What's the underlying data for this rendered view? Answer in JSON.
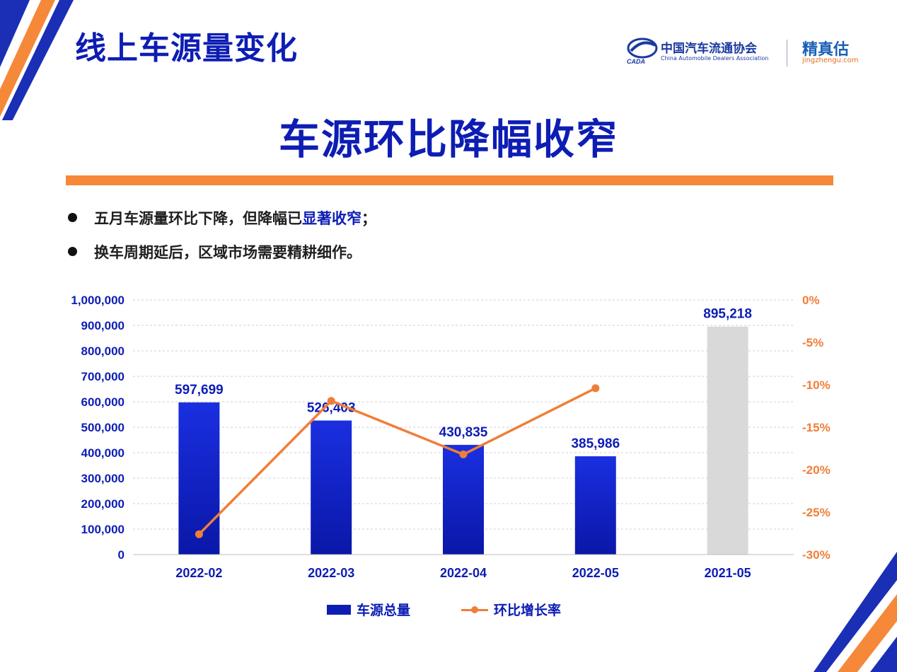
{
  "header": {
    "page_title": "线上车源量变化",
    "cada_name_cn": "中国汽车流通协会",
    "cada_name_en": "China Automobile Dealers Association",
    "cada_emblem_text": "CADA",
    "jzg_name": "精真估",
    "jzg_url": "jingzhengu.com"
  },
  "headline": "车源环比降幅收窄",
  "bullets": [
    {
      "text_before": "五月车源量环比下降，但降幅已",
      "highlight": "显著收窄",
      "text_after": "；"
    },
    {
      "text_before": "换车周期延后，区域市场需要精耕细作。",
      "highlight": "",
      "text_after": ""
    }
  ],
  "colors": {
    "title_blue": "#0d1db4",
    "bar_blue": "#0d1db4",
    "bar_gray": "#d9d9d9",
    "line_orange": "#f07e38",
    "rule_orange": "#f6883a"
  },
  "chart_data": {
    "type": "bar",
    "categories": [
      "2022-02",
      "2022-03",
      "2022-04",
      "2022-05",
      "2021-05"
    ],
    "series": [
      {
        "name": "车源总量",
        "type": "bar",
        "axis": "left",
        "values": [
          597699,
          526403,
          430835,
          385986,
          895218
        ],
        "labels": [
          "597,699",
          "526,403",
          "430,835",
          "385,986",
          "895,218"
        ],
        "colors": [
          "#0d1db4",
          "#0d1db4",
          "#0d1db4",
          "#0d1db4",
          "#d9d9d9"
        ]
      },
      {
        "name": "环比增长率",
        "type": "line",
        "axis": "right",
        "values": [
          -27.6,
          -11.9,
          -18.2,
          -10.4,
          null
        ]
      }
    ],
    "yleft": {
      "lim": [
        0,
        1000000
      ],
      "ticks": [
        0,
        100000,
        200000,
        300000,
        400000,
        500000,
        600000,
        700000,
        800000,
        900000,
        1000000
      ],
      "tick_labels": [
        "0",
        "100,000",
        "200,000",
        "300,000",
        "400,000",
        "500,000",
        "600,000",
        "700,000",
        "800,000",
        "900,000",
        "1,000,000"
      ]
    },
    "yright": {
      "lim": [
        -30,
        0
      ],
      "ticks": [
        0,
        -5,
        -10,
        -15,
        -20,
        -25,
        -30
      ],
      "tick_labels": [
        "0%",
        "-5%",
        "-10%",
        "-15%",
        "-20%",
        "-25%",
        "-30%"
      ]
    },
    "grid": true,
    "legend": "bottom"
  }
}
